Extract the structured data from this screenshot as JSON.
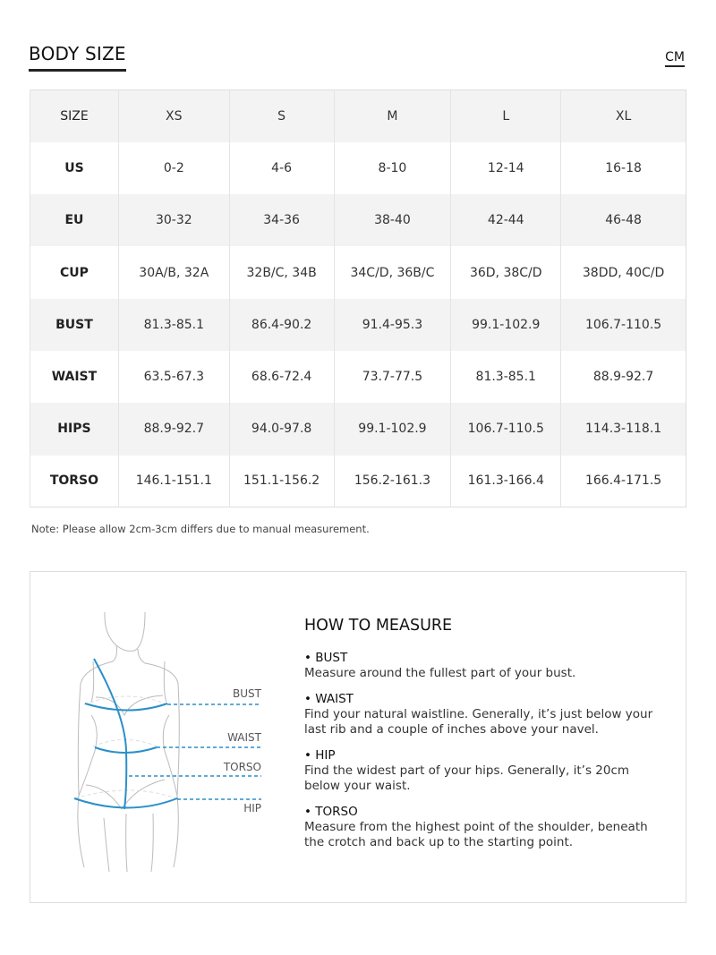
{
  "header": {
    "title": "BODY SIZE",
    "unit": "CM"
  },
  "table": {
    "rows": [
      {
        "label": "SIZE",
        "cells": [
          "XS",
          "S",
          "M",
          "L",
          "XL"
        ]
      },
      {
        "label": "US",
        "cells": [
          "0-2",
          "4-6",
          "8-10",
          "12-14",
          "16-18"
        ]
      },
      {
        "label": "EU",
        "cells": [
          "30-32",
          "34-36",
          "38-40",
          "42-44",
          "46-48"
        ]
      },
      {
        "label": "CUP",
        "cells": [
          "30A/B, 32A",
          "32B/C, 34B",
          "34C/D, 36B/C",
          "36D, 38C/D",
          "38DD, 40C/D"
        ]
      },
      {
        "label": "BUST",
        "cells": [
          "81.3-85.1",
          "86.4-90.2",
          "91.4-95.3",
          "99.1-102.9",
          "106.7-110.5"
        ]
      },
      {
        "label": "WAIST",
        "cells": [
          "63.5-67.3",
          "68.6-72.4",
          "73.7-77.5",
          "81.3-85.1",
          "88.9-92.7"
        ]
      },
      {
        "label": "HIPS",
        "cells": [
          "88.9-92.7",
          "94.0-97.8",
          "99.1-102.9",
          "106.7-110.5",
          "114.3-118.1"
        ]
      },
      {
        "label": "TORSO",
        "cells": [
          "146.1-151.1",
          "151.1-156.2",
          "156.2-161.3",
          "161.3-166.4",
          "166.4-171.5"
        ]
      }
    ]
  },
  "note": "Note: Please allow 2cm-3cm differs due to manual measurement.",
  "figure": {
    "labels": {
      "bust": "BUST",
      "waist": "WAIST",
      "torso": "TORSO",
      "hip": "HIP"
    },
    "accent": "#2a8fc9"
  },
  "how": {
    "title": "HOW TO MEASURE",
    "items": [
      {
        "heading": "• BUST",
        "text": "Measure around the fullest part of your bust."
      },
      {
        "heading": "• WAIST",
        "text": "Find your natural waistline. Generally, it’s just below your last rib and a couple of inches above your navel."
      },
      {
        "heading": "• HIP",
        "text": "Find the widest part of your hips. Generally, it’s 20cm below your waist."
      },
      {
        "heading": "• TORSO",
        "text": "Measure from the highest point of the shoulder, beneath the crotch and back up to the starting point."
      }
    ]
  }
}
